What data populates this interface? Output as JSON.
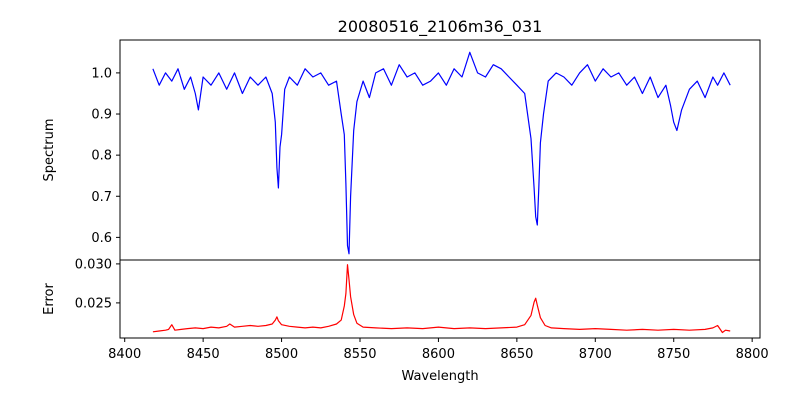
{
  "chart_data": {
    "type": "line",
    "title": "20080516_2106m36_031",
    "xlabel": "Wavelength",
    "grid": false,
    "legend": "none",
    "x_ticks": [
      8400,
      8450,
      8500,
      8550,
      8600,
      8650,
      8700,
      8750,
      8800
    ],
    "x_tick_labels": [
      "8400",
      "8450",
      "8500",
      "8550",
      "8600",
      "8650",
      "8700",
      "8750",
      "8800"
    ],
    "xlim": [
      8397,
      8805
    ],
    "panels": [
      {
        "ylabel": "Spectrum",
        "ylim": [
          0.545,
          1.08
        ],
        "y_ticks": [
          0.6,
          0.7,
          0.8,
          0.9,
          1.0
        ],
        "y_tick_labels": [
          "0.6",
          "0.7",
          "0.8",
          "0.9",
          "1.0"
        ],
        "series": [
          {
            "color": "#0000ff",
            "x": [
              8418,
              8422,
              8426,
              8430,
              8434,
              8438,
              8442,
              8445,
              8447,
              8450,
              8455,
              8460,
              8465,
              8470,
              8475,
              8480,
              8485,
              8490,
              8494,
              8496,
              8497,
              8498,
              8499,
              8500,
              8502,
              8505,
              8510,
              8515,
              8520,
              8525,
              8530,
              8535,
              8538,
              8540,
              8541,
              8542,
              8543,
              8544,
              8546,
              8548,
              8552,
              8556,
              8560,
              8565,
              8570,
              8575,
              8580,
              8585,
              8590,
              8595,
              8600,
              8605,
              8610,
              8615,
              8620,
              8625,
              8630,
              8635,
              8640,
              8645,
              8650,
              8655,
              8659,
              8661,
              8662,
              8663,
              8664,
              8665,
              8667,
              8670,
              8675,
              8680,
              8685,
              8690,
              8695,
              8700,
              8705,
              8710,
              8715,
              8720,
              8725,
              8730,
              8735,
              8740,
              8745,
              8748,
              8750,
              8752,
              8755,
              8760,
              8765,
              8770,
              8775,
              8778,
              8782,
              8786
            ],
            "y": [
              1.01,
              0.97,
              1.0,
              0.98,
              1.01,
              0.96,
              0.99,
              0.95,
              0.91,
              0.99,
              0.97,
              1.0,
              0.96,
              1.0,
              0.95,
              0.99,
              0.97,
              0.99,
              0.95,
              0.88,
              0.77,
              0.72,
              0.82,
              0.85,
              0.96,
              0.99,
              0.97,
              1.01,
              0.99,
              1.0,
              0.97,
              0.98,
              0.9,
              0.85,
              0.73,
              0.58,
              0.56,
              0.7,
              0.86,
              0.93,
              0.98,
              0.94,
              1.0,
              1.01,
              0.97,
              1.02,
              0.99,
              1.0,
              0.97,
              0.98,
              1.0,
              0.97,
              1.01,
              0.99,
              1.05,
              1.0,
              0.99,
              1.02,
              1.01,
              0.99,
              0.97,
              0.95,
              0.84,
              0.72,
              0.65,
              0.63,
              0.72,
              0.83,
              0.9,
              0.98,
              1.0,
              0.99,
              0.97,
              1.0,
              1.02,
              0.98,
              1.01,
              0.99,
              1.0,
              0.97,
              0.99,
              0.95,
              0.99,
              0.94,
              0.97,
              0.92,
              0.88,
              0.86,
              0.91,
              0.96,
              0.98,
              0.94,
              0.99,
              0.97,
              1.0,
              0.97
            ]
          }
        ]
      },
      {
        "ylabel": "Error",
        "ylim": [
          0.0205,
          0.0305
        ],
        "y_ticks": [
          0.025,
          0.03
        ],
        "y_tick_labels": [
          "0.025",
          "0.030"
        ],
        "series": [
          {
            "color": "#ff0000",
            "x": [
              8418,
              8422,
              8426,
              8428,
              8430,
              8432,
              8436,
              8440,
              8445,
              8450,
              8455,
              8460,
              8465,
              8467,
              8470,
              8475,
              8480,
              8485,
              8490,
              8494,
              8496,
              8497,
              8498,
              8500,
              8505,
              8510,
              8515,
              8520,
              8525,
              8530,
              8535,
              8538,
              8540,
              8541,
              8542,
              8543,
              8544,
              8546,
              8548,
              8552,
              8560,
              8570,
              8580,
              8590,
              8600,
              8610,
              8620,
              8630,
              8640,
              8650,
              8655,
              8659,
              8661,
              8662,
              8663,
              8665,
              8668,
              8672,
              8680,
              8690,
              8700,
              8710,
              8720,
              8730,
              8740,
              8750,
              8760,
              8770,
              8775,
              8778,
              8781,
              8783,
              8786
            ],
            "y": [
              0.0213,
              0.0214,
              0.0215,
              0.0216,
              0.0222,
              0.0215,
              0.0216,
              0.0217,
              0.0218,
              0.0217,
              0.0219,
              0.0218,
              0.022,
              0.0223,
              0.0219,
              0.022,
              0.0221,
              0.022,
              0.0221,
              0.0223,
              0.0228,
              0.0232,
              0.0227,
              0.0222,
              0.022,
              0.0219,
              0.0218,
              0.0219,
              0.0218,
              0.022,
              0.0223,
              0.0228,
              0.0246,
              0.0262,
              0.0299,
              0.028,
              0.0258,
              0.0235,
              0.0224,
              0.0219,
              0.0218,
              0.0217,
              0.0218,
              0.0217,
              0.0219,
              0.0217,
              0.0218,
              0.0217,
              0.0218,
              0.0219,
              0.0222,
              0.0234,
              0.0251,
              0.0256,
              0.0247,
              0.0231,
              0.0221,
              0.0218,
              0.0217,
              0.0216,
              0.0217,
              0.0216,
              0.0215,
              0.0216,
              0.0215,
              0.0216,
              0.0215,
              0.0216,
              0.0218,
              0.0221,
              0.0212,
              0.0215,
              0.0214
            ]
          }
        ]
      }
    ]
  }
}
